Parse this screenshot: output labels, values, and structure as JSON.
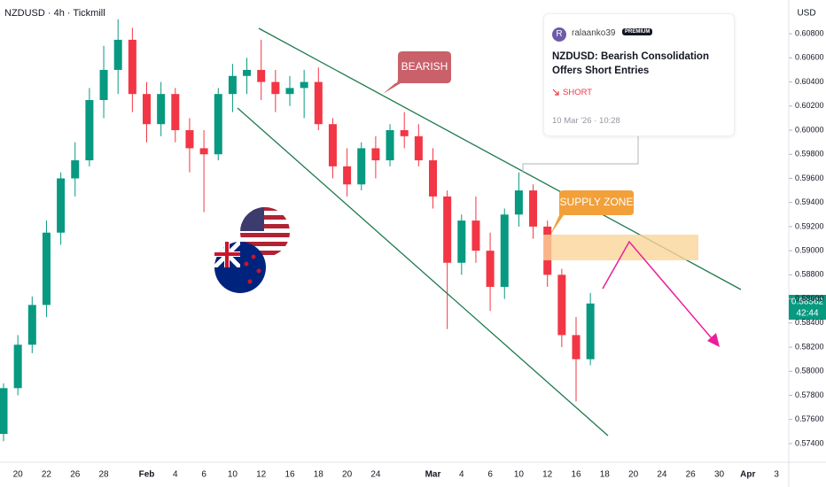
{
  "header": {
    "symbol": "NZDUSD · 4h · Tickmill"
  },
  "chart_data": {
    "type": "candlestick",
    "categories": [
      null,
      "20",
      null,
      "22",
      null,
      "26",
      null,
      "28",
      null,
      null,
      "Feb",
      null,
      "4",
      null,
      "6",
      null,
      "10",
      null,
      "12",
      null,
      "16",
      null,
      "18",
      null,
      "20",
      null,
      "24",
      null,
      null,
      null,
      "Mar",
      null,
      "4",
      null,
      "6",
      null,
      "10",
      null,
      "12",
      null,
      "16",
      null,
      "18",
      null,
      "20",
      null,
      "24",
      null,
      "26",
      null,
      "30",
      null,
      "Apr",
      null,
      "3"
    ],
    "open": [
      0.5748,
      0.5786,
      0.5822,
      0.5855,
      0.5915,
      0.596,
      0.5975,
      0.6025,
      0.605,
      0.6075,
      0.603,
      0.6005,
      0.603,
      0.6,
      0.5985,
      0.598,
      0.603,
      0.6045,
      0.605,
      0.604,
      0.603,
      0.6035,
      0.604,
      0.6005,
      0.597,
      0.5955,
      0.5985,
      0.5975,
      0.6,
      0.5995,
      0.5975,
      0.5945,
      0.589,
      0.5925,
      0.59,
      0.587,
      0.593,
      0.595,
      0.592,
      0.588,
      0.583,
      0.581,
      null,
      null,
      null,
      null,
      null,
      null,
      null,
      null,
      null,
      null,
      null,
      null,
      null
    ],
    "high": [
      0.579,
      0.583,
      0.5862,
      0.5925,
      0.5965,
      0.599,
      0.6035,
      0.607,
      0.6092,
      0.6085,
      0.604,
      0.604,
      0.6035,
      0.601,
      0.6,
      0.6035,
      0.6055,
      0.606,
      0.6075,
      0.605,
      0.6045,
      0.605,
      0.6052,
      0.601,
      0.5985,
      0.599,
      0.5995,
      0.6005,
      0.6015,
      0.6005,
      0.5985,
      0.595,
      0.593,
      0.5945,
      0.5915,
      0.5935,
      0.5965,
      0.5955,
      0.5925,
      0.5885,
      0.5845,
      0.5865,
      null,
      null,
      null,
      null,
      null,
      null,
      null,
      null,
      null,
      null,
      null,
      null,
      null
    ],
    "low": [
      0.5742,
      0.578,
      0.5815,
      0.5845,
      0.5905,
      0.5945,
      0.597,
      0.601,
      0.603,
      0.6015,
      0.599,
      0.5995,
      0.599,
      0.5965,
      0.5932,
      0.5975,
      0.6015,
      0.603,
      0.6025,
      0.6015,
      0.602,
      0.601,
      0.6,
      0.596,
      0.5945,
      0.595,
      0.596,
      0.597,
      0.5985,
      0.597,
      0.5935,
      0.5835,
      0.588,
      0.589,
      0.585,
      0.586,
      0.592,
      0.591,
      0.587,
      0.582,
      0.5775,
      0.5805,
      null,
      null,
      null,
      null,
      null,
      null,
      null,
      null,
      null,
      null,
      null,
      null,
      null
    ],
    "close": [
      0.5786,
      0.5822,
      0.5855,
      0.5915,
      0.596,
      0.5975,
      0.6025,
      0.605,
      0.6075,
      0.603,
      0.6005,
      0.603,
      0.6,
      0.5985,
      0.598,
      0.603,
      0.6045,
      0.605,
      0.604,
      0.603,
      0.6035,
      0.604,
      0.6005,
      0.597,
      0.5955,
      0.5985,
      0.5975,
      0.6,
      0.5995,
      0.5975,
      0.5945,
      0.589,
      0.5925,
      0.59,
      0.587,
      0.593,
      0.595,
      0.592,
      0.588,
      0.583,
      0.581,
      0.58562,
      null,
      null,
      null,
      null,
      null,
      null,
      null,
      null,
      null,
      null,
      null,
      null,
      null
    ],
    "up_color": "#089981",
    "down_color": "#f23645",
    "ylim": [
      0.5726,
      0.6108
    ],
    "yticks": [
      {
        "value": 0.574,
        "label": "0.57400"
      },
      {
        "value": 0.576,
        "label": "0.57600"
      },
      {
        "value": 0.578,
        "label": "0.57800"
      },
      {
        "value": 0.58,
        "label": "0.58000"
      },
      {
        "value": 0.582,
        "label": "0.58200"
      },
      {
        "value": 0.584,
        "label": "0.58400"
      },
      {
        "value": 0.586,
        "label": "0.58600"
      },
      {
        "value": 0.588,
        "label": "0.58800"
      },
      {
        "value": 0.59,
        "label": "0.59000"
      },
      {
        "value": 0.592,
        "label": "0.59200"
      },
      {
        "value": 0.594,
        "label": "0.59400"
      },
      {
        "value": 0.596,
        "label": "0.59600"
      },
      {
        "value": 0.598,
        "label": "0.59800"
      },
      {
        "value": 0.6,
        "label": "0.60000"
      },
      {
        "value": 0.602,
        "label": "0.60200"
      },
      {
        "value": 0.604,
        "label": "0.60400"
      },
      {
        "value": 0.606,
        "label": "0.60600"
      },
      {
        "value": 0.608,
        "label": "0.60800"
      }
    ],
    "currency": "USD",
    "countdown": "42:44",
    "annotations": {
      "bearish": "BEARISH",
      "supply_zone": "SUPPLY ZONE"
    }
  },
  "idea_card": {
    "avatar": "R",
    "author": "ralaanko39",
    "badge": "PREMIUM",
    "title": "NZDUSD: Bearish Consolidation Offers Short Entries",
    "direction": "SHORT",
    "date": "10 Mar '26 · 10:28"
  }
}
